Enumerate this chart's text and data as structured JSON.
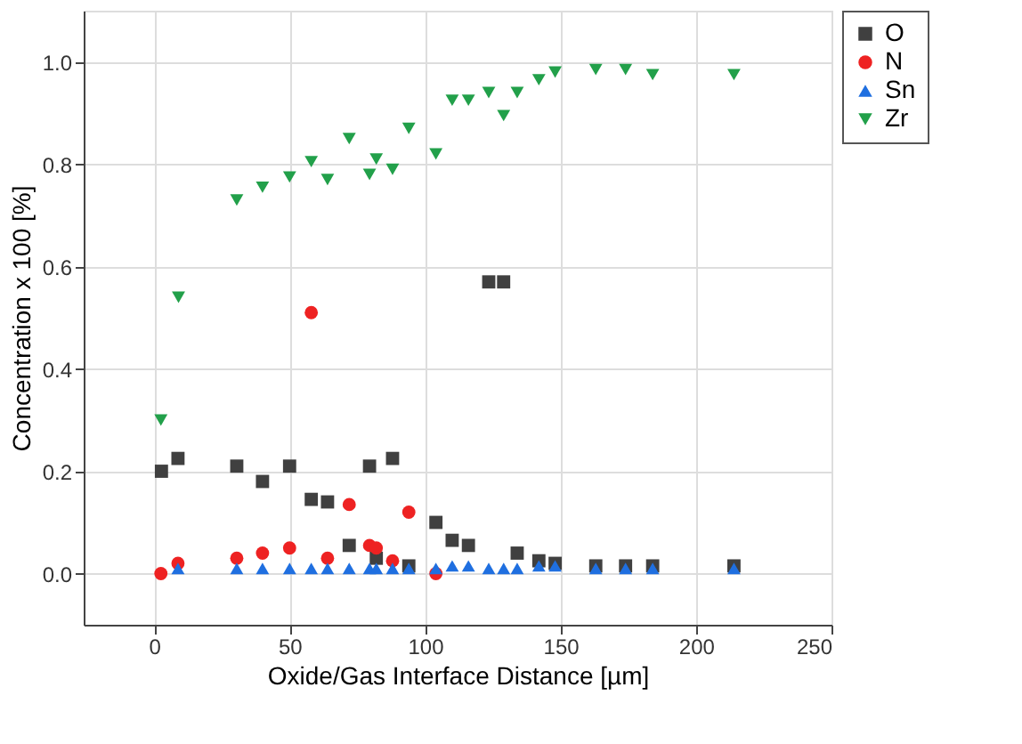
{
  "chart_data": {
    "type": "scatter",
    "xlabel": "Oxide/Gas Interface Distance [µm]",
    "ylabel": "Concentration x 100 [%]",
    "xlim": [
      -26,
      250
    ],
    "ylim": [
      -0.1,
      1.1
    ],
    "xticks": [
      0,
      50,
      100,
      150,
      200,
      250
    ],
    "yticks": [
      {
        "value": 0,
        "label": "0.0"
      },
      {
        "value": 0.2,
        "label": "0.2"
      },
      {
        "value": 0.4,
        "label": "0.4"
      },
      {
        "value": 0.6,
        "label": "0.6"
      },
      {
        "value": 0.8,
        "label": "0.8"
      },
      {
        "value": 1.0,
        "label": "1.0"
      }
    ],
    "grid": true,
    "legend": "top right",
    "series": [
      {
        "name": "O",
        "color": "#404040",
        "marker": "square",
        "x": [
          2.7,
          8.8,
          30.5,
          40,
          50,
          58,
          64,
          72,
          79.5,
          82,
          88,
          94,
          104,
          110,
          116,
          123.5,
          129,
          134,
          142,
          148,
          163,
          174,
          184,
          214
        ],
        "values": [
          0.2,
          0.225,
          0.21,
          0.18,
          0.21,
          0.145,
          0.14,
          0.055,
          0.21,
          0.03,
          0.225,
          0.015,
          0.1,
          0.065,
          0.055,
          0.57,
          0.57,
          0.04,
          0.025,
          0.02,
          0.015,
          0.015,
          0.015,
          0.015
        ]
      },
      {
        "name": "N",
        "color": "#ee2222",
        "marker": "circle",
        "x": [
          2.5,
          8.8,
          30.5,
          40,
          50,
          58,
          64,
          72,
          79.5,
          82,
          88,
          94,
          104
        ],
        "values": [
          0.0,
          0.02,
          0.03,
          0.04,
          0.05,
          0.51,
          0.03,
          0.135,
          0.055,
          0.05,
          0.025,
          0.12,
          0.0
        ]
      },
      {
        "name": "Sn",
        "color": "#1f6fe0",
        "marker": "triangle",
        "x": [
          8.8,
          30.5,
          40,
          50,
          58,
          64,
          72,
          79.5,
          82,
          88,
          94,
          104,
          110,
          116,
          123.5,
          129,
          134,
          142,
          148,
          163,
          174,
          184,
          214
        ],
        "values": [
          0.01,
          0.01,
          0.01,
          0.01,
          0.01,
          0.01,
          0.01,
          0.01,
          0.01,
          0.01,
          0.01,
          0.01,
          0.015,
          0.015,
          0.01,
          0.01,
          0.01,
          0.015,
          0.015,
          0.01,
          0.01,
          0.01,
          0.01
        ]
      },
      {
        "name": "Zr",
        "color": "#22a04a",
        "marker": "triangle-down",
        "x": [
          2.5,
          9,
          30.5,
          40,
          50,
          58,
          64,
          72,
          79.5,
          82,
          88,
          94,
          104,
          110,
          116,
          123.5,
          129,
          134,
          142,
          148,
          163,
          174,
          184,
          214
        ],
        "values": [
          0.3,
          0.54,
          0.73,
          0.755,
          0.775,
          0.805,
          0.77,
          0.85,
          0.78,
          0.81,
          0.79,
          0.87,
          0.82,
          0.925,
          0.925,
          0.94,
          0.895,
          0.94,
          0.965,
          0.98,
          0.985,
          0.985,
          0.975,
          0.975
        ]
      }
    ]
  }
}
